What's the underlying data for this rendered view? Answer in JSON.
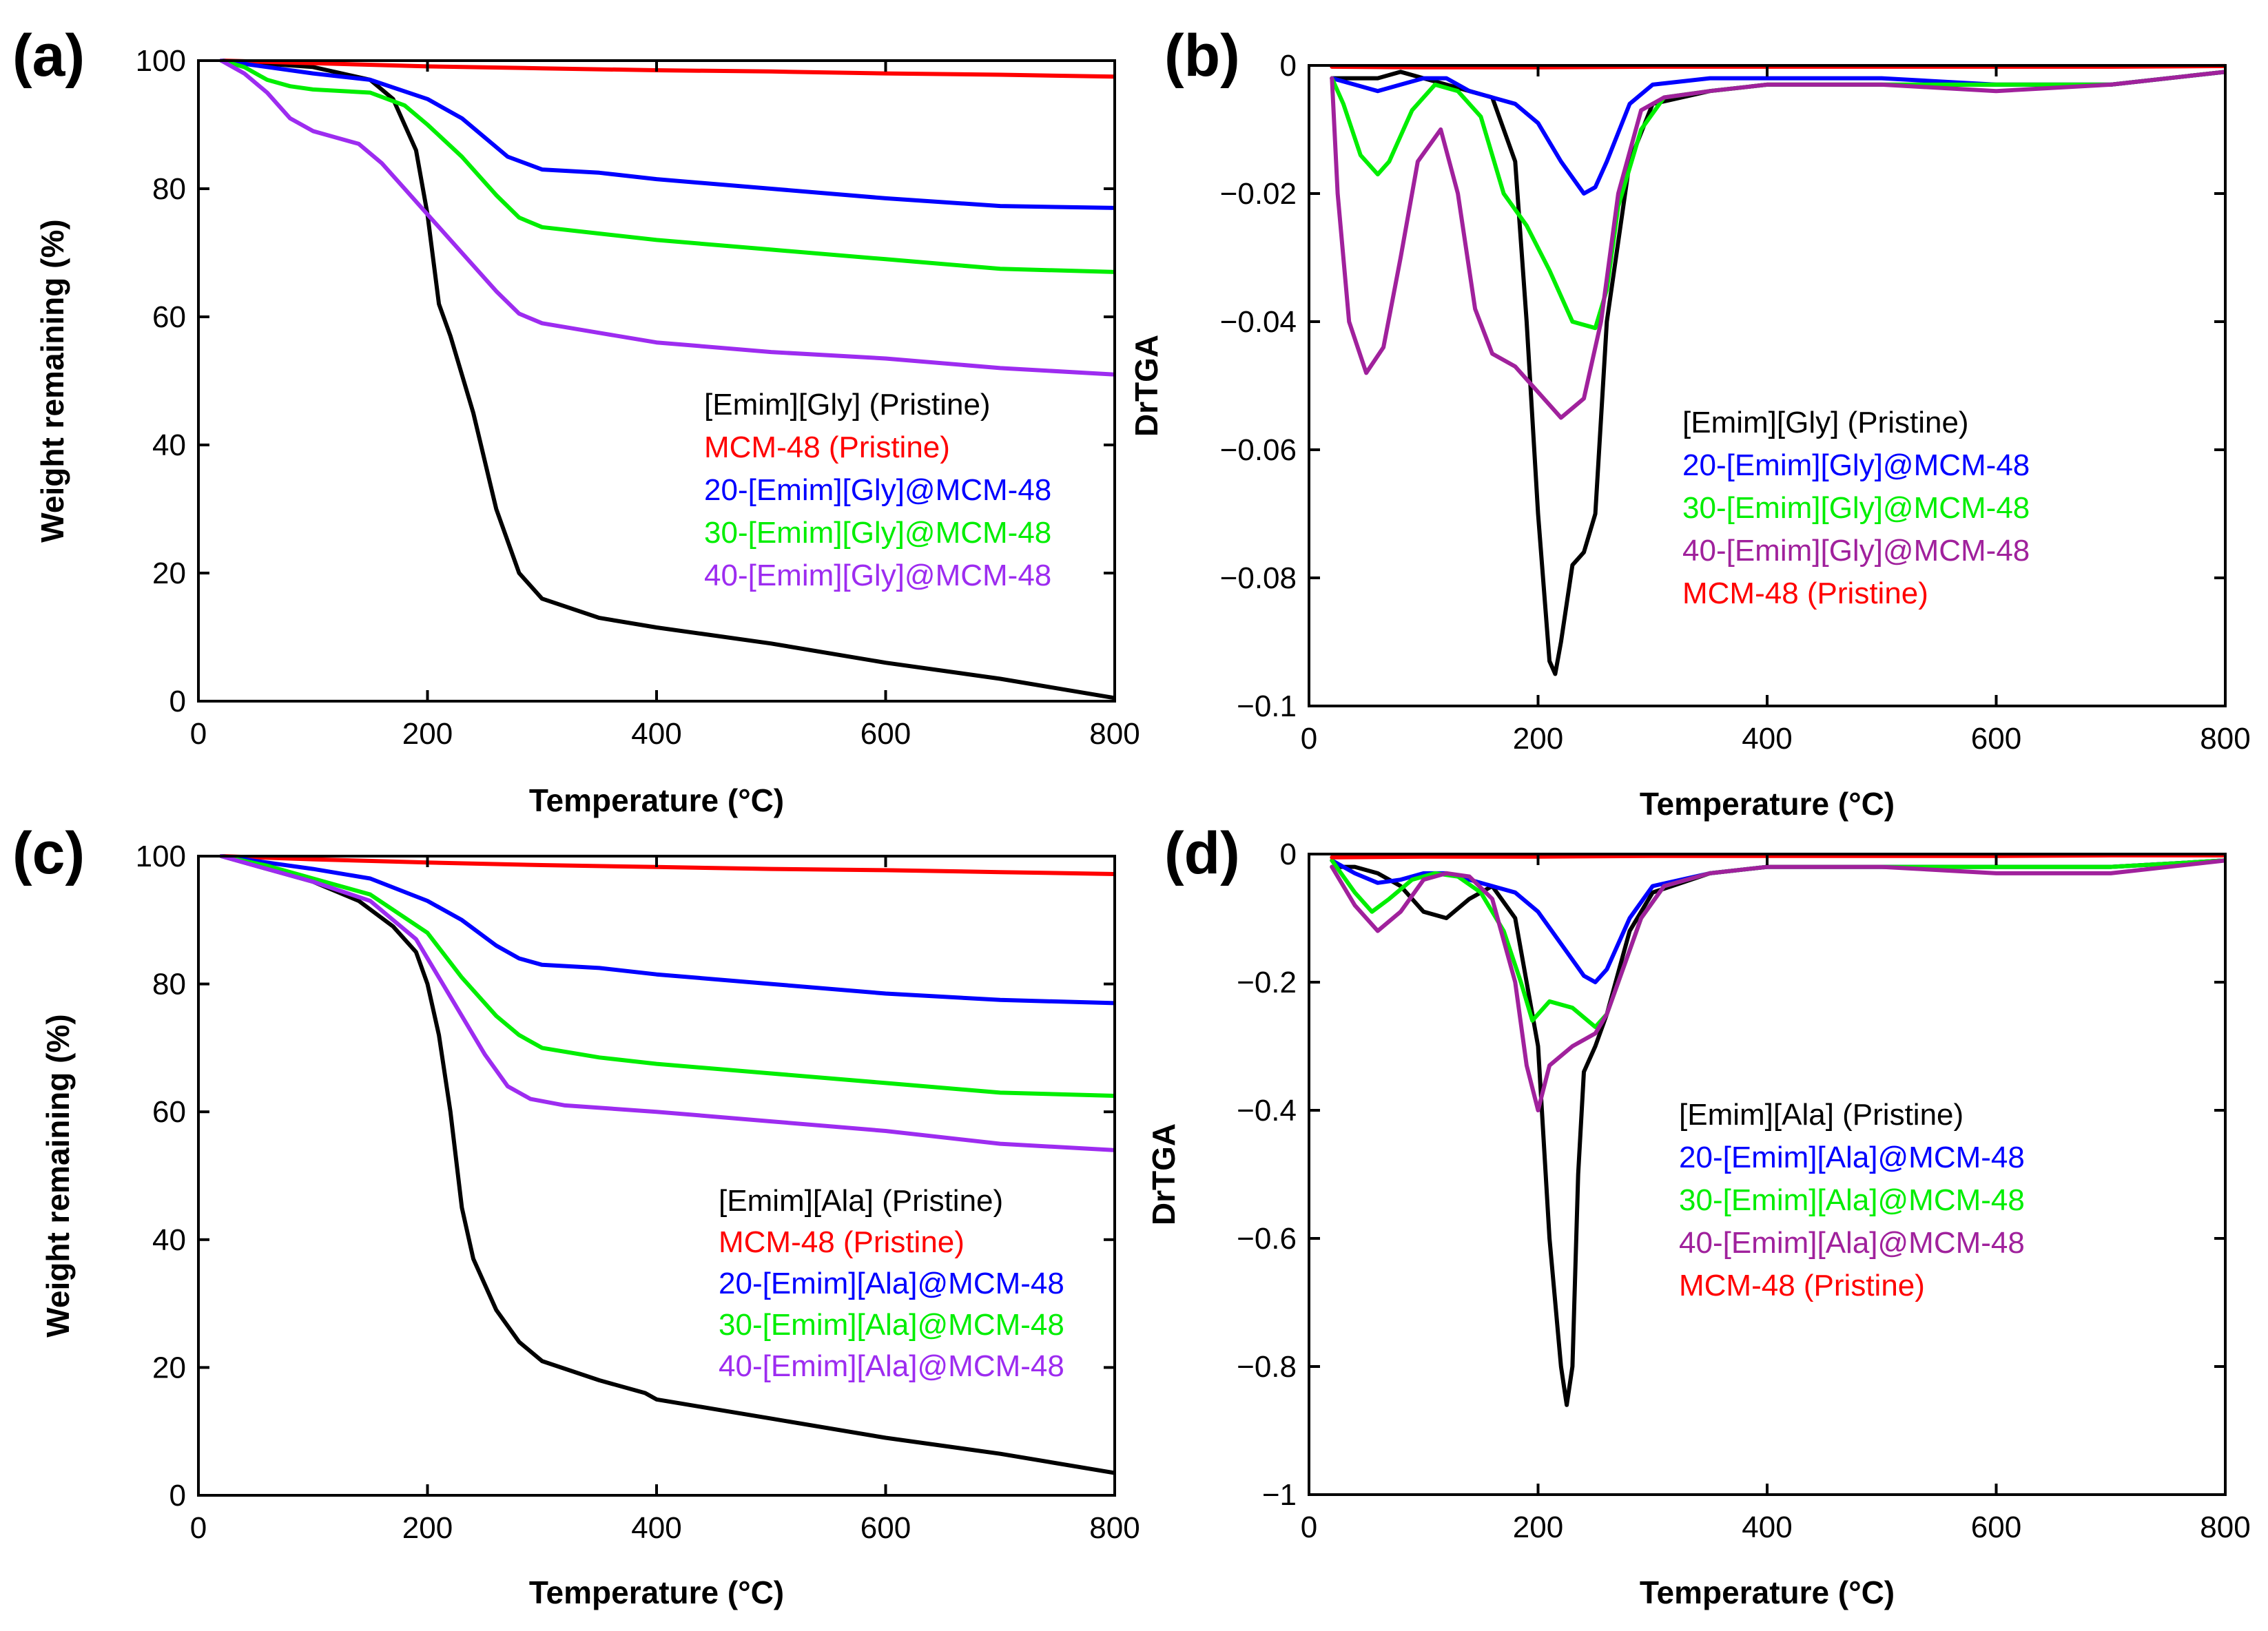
{
  "chart_data": [
    {
      "id": "a",
      "panel_label": "(a)",
      "type": "line",
      "xlabel": "Temperature (°C)",
      "ylabel": "Weight remaining (%)",
      "xlim": [
        0,
        800
      ],
      "ylim": [
        0,
        100
      ],
      "xticks": [
        0,
        200,
        400,
        600,
        800
      ],
      "yticks": [
        0,
        20,
        40,
        60,
        80,
        100
      ],
      "xtick_labels": [
        "0",
        "200",
        "400",
        "600",
        "800"
      ],
      "ytick_labels": [
        "0",
        "20",
        "40",
        "60",
        "80",
        "100"
      ],
      "series": [
        {
          "name": "[Emim][Gly] (Pristine)",
          "color": "#000000",
          "x": [
            20,
            100,
            150,
            170,
            190,
            200,
            210,
            220,
            240,
            260,
            280,
            300,
            350,
            400,
            500,
            600,
            700,
            800
          ],
          "y": [
            100,
            99,
            97,
            94,
            86,
            76,
            62,
            57,
            45,
            30,
            20,
            16,
            13,
            11.5,
            9,
            6,
            3.5,
            0.5
          ]
        },
        {
          "name": "MCM-48 (Pristine)",
          "color": "#ff0000",
          "x": [
            20,
            100,
            200,
            300,
            400,
            500,
            600,
            700,
            800
          ],
          "y": [
            100,
            99.6,
            99.1,
            98.8,
            98.5,
            98.3,
            98,
            97.8,
            97.5
          ]
        },
        {
          "name": "20-[Emim][Gly]@MCM-48",
          "color": "#0000ff",
          "x": [
            20,
            60,
            100,
            150,
            200,
            230,
            250,
            270,
            300,
            350,
            400,
            500,
            600,
            700,
            800
          ],
          "y": [
            100,
            99,
            98,
            97,
            94,
            91,
            88,
            85,
            83,
            82.5,
            81.5,
            80,
            78.5,
            77.3,
            77
          ]
        },
        {
          "name": "30-[Emim][Gly]@MCM-48",
          "color": "#00ee00",
          "x": [
            20,
            40,
            60,
            80,
            100,
            150,
            180,
            200,
            230,
            260,
            280,
            300,
            350,
            400,
            500,
            600,
            700,
            800
          ],
          "y": [
            100,
            99,
            97,
            96,
            95.5,
            95,
            93,
            90,
            85,
            79,
            75.5,
            74,
            73,
            72,
            70.5,
            69,
            67.5,
            67
          ]
        },
        {
          "name": "40-[Emim][Gly]@MCM-48",
          "color": "#9d2cf0",
          "x": [
            20,
            40,
            60,
            80,
            100,
            120,
            140,
            160,
            180,
            200,
            230,
            260,
            280,
            300,
            350,
            400,
            500,
            600,
            700,
            800
          ],
          "y": [
            100,
            98,
            95,
            91,
            89,
            88,
            87,
            84,
            80,
            76,
            70,
            64,
            60.5,
            59,
            57.5,
            56,
            54.5,
            53.5,
            52,
            51
          ]
        }
      ],
      "legend": [
        "[Emim][Gly] (Pristine)",
        "MCM-48 (Pristine)",
        "20-[Emim][Gly]@MCM-48",
        "30-[Emim][Gly]@MCM-48",
        "40-[Emim][Gly]@MCM-48"
      ],
      "legend_placement": "center-right"
    },
    {
      "id": "b",
      "panel_label": "(b)",
      "type": "line",
      "xlabel": "Temperature (°C)",
      "ylabel": "DrTGA",
      "xlim": [
        0,
        800
      ],
      "ylim": [
        -0.1,
        0
      ],
      "xticks": [
        0,
        200,
        400,
        600,
        800
      ],
      "yticks": [
        -0.1,
        -0.08,
        -0.06,
        -0.04,
        -0.02,
        0
      ],
      "xtick_labels": [
        "0",
        "200",
        "400",
        "600",
        "800"
      ],
      "ytick_labels": [
        "−0.1",
        "−0.08",
        "−0.06",
        "−0.04",
        "−0.02",
        "0"
      ],
      "series": [
        {
          "name": "[Emim][Gly] (Pristine)",
          "color": "#000000",
          "x": [
            20,
            40,
            60,
            80,
            100,
            120,
            140,
            160,
            180,
            190,
            200,
            210,
            215,
            220,
            230,
            240,
            250,
            260,
            280,
            300,
            350,
            400,
            500,
            600,
            700,
            800
          ],
          "y": [
            -0.002,
            -0.002,
            -0.002,
            -0.001,
            -0.002,
            -0.003,
            -0.004,
            -0.005,
            -0.015,
            -0.04,
            -0.07,
            -0.093,
            -0.095,
            -0.09,
            -0.078,
            -0.076,
            -0.07,
            -0.04,
            -0.015,
            -0.006,
            -0.004,
            -0.003,
            -0.003,
            -0.003,
            -0.003,
            -0.001
          ]
        },
        {
          "name": "20-[Emim][Gly]@MCM-48",
          "color": "#0000ff",
          "x": [
            20,
            40,
            60,
            80,
            100,
            120,
            140,
            160,
            180,
            200,
            220,
            240,
            250,
            260,
            280,
            300,
            350,
            400,
            500,
            600,
            700,
            800
          ],
          "y": [
            -0.002,
            -0.003,
            -0.004,
            -0.003,
            -0.002,
            -0.002,
            -0.004,
            -0.005,
            -0.006,
            -0.009,
            -0.015,
            -0.02,
            -0.019,
            -0.015,
            -0.006,
            -0.003,
            -0.002,
            -0.002,
            -0.002,
            -0.003,
            -0.003,
            -0.001
          ]
        },
        {
          "name": "30-[Emim][Gly]@MCM-48",
          "color": "#00ee00",
          "x": [
            20,
            30,
            45,
            60,
            70,
            90,
            110,
            130,
            150,
            170,
            190,
            210,
            230,
            250,
            260,
            270,
            290,
            310,
            350,
            400,
            500,
            600,
            700,
            800
          ],
          "y": [
            -0.002,
            -0.006,
            -0.014,
            -0.017,
            -0.015,
            -0.007,
            -0.003,
            -0.004,
            -0.008,
            -0.02,
            -0.025,
            -0.032,
            -0.04,
            -0.041,
            -0.035,
            -0.022,
            -0.01,
            -0.005,
            -0.004,
            -0.003,
            -0.003,
            -0.003,
            -0.003,
            -0.001
          ]
        },
        {
          "name": "40-[Emim][Gly]@MCM-48",
          "color": "#a0219c",
          "x": [
            20,
            25,
            35,
            50,
            65,
            80,
            95,
            115,
            130,
            145,
            160,
            180,
            200,
            220,
            240,
            255,
            270,
            290,
            310,
            350,
            400,
            500,
            600,
            700,
            800
          ],
          "y": [
            -0.002,
            -0.02,
            -0.04,
            -0.048,
            -0.044,
            -0.03,
            -0.015,
            -0.01,
            -0.02,
            -0.038,
            -0.045,
            -0.047,
            -0.051,
            -0.055,
            -0.052,
            -0.04,
            -0.02,
            -0.007,
            -0.005,
            -0.004,
            -0.003,
            -0.003,
            -0.004,
            -0.003,
            -0.001
          ]
        },
        {
          "name": "MCM-48 (Pristine)",
          "color": "#ff0000",
          "x": [
            20,
            100,
            200,
            300,
            400,
            500,
            600,
            700,
            800
          ],
          "y": [
            -0.0002,
            -0.0003,
            -0.0003,
            -0.0002,
            -0.0002,
            -0.0002,
            -0.0002,
            -0.0002,
            -0.0001
          ]
        }
      ],
      "legend": [
        "[Emim][Gly] (Pristine)",
        "20-[Emim][Gly]@MCM-48",
        "30-[Emim][Gly]@MCM-48",
        "40-[Emim][Gly]@MCM-48",
        "MCM-48 (Pristine)"
      ],
      "legend_placement": "center"
    },
    {
      "id": "c",
      "panel_label": "(c)",
      "type": "line",
      "xlabel": "Temperature (°C)",
      "ylabel": "Weight remaining (%)",
      "xlim": [
        0,
        800
      ],
      "ylim": [
        0,
        100
      ],
      "xticks": [
        0,
        200,
        400,
        600,
        800
      ],
      "yticks": [
        0,
        20,
        40,
        60,
        80,
        100
      ],
      "xtick_labels": [
        "0",
        "200",
        "400",
        "600",
        "800"
      ],
      "ytick_labels": [
        "0",
        "20",
        "40",
        "60",
        "80",
        "100"
      ],
      "series": [
        {
          "name": "[Emim][Ala] (Pristine)",
          "color": "#000000",
          "x": [
            20,
            60,
            100,
            140,
            170,
            190,
            200,
            210,
            220,
            230,
            240,
            260,
            280,
            300,
            350,
            390,
            400,
            450,
            500,
            600,
            700,
            800
          ],
          "y": [
            100,
            98,
            96,
            93,
            89,
            85,
            80,
            72,
            60,
            45,
            37,
            29,
            24,
            21,
            18,
            16,
            15,
            13.5,
            12,
            9,
            6.5,
            3.5
          ]
        },
        {
          "name": "MCM-48 (Pristine)",
          "color": "#ff0000",
          "x": [
            20,
            100,
            200,
            300,
            400,
            500,
            600,
            700,
            800
          ],
          "y": [
            100,
            99.5,
            99,
            98.6,
            98.3,
            98,
            97.8,
            97.5,
            97.2
          ]
        },
        {
          "name": "20-[Emim][Ala]@MCM-48",
          "color": "#0000ff",
          "x": [
            20,
            60,
            100,
            150,
            200,
            230,
            260,
            280,
            300,
            350,
            400,
            500,
            600,
            700,
            800
          ],
          "y": [
            100,
            99,
            98,
            96.5,
            93,
            90,
            86,
            84,
            83,
            82.5,
            81.5,
            80,
            78.5,
            77.5,
            77
          ]
        },
        {
          "name": "30-[Emim][Ala]@MCM-48",
          "color": "#00ee00",
          "x": [
            20,
            60,
            100,
            150,
            200,
            230,
            260,
            280,
            300,
            350,
            400,
            500,
            600,
            700,
            800
          ],
          "y": [
            100,
            98.5,
            96.5,
            94,
            88,
            81,
            75,
            72,
            70,
            68.5,
            67.5,
            66,
            64.5,
            63,
            62.5
          ]
        },
        {
          "name": "40-[Emim][Ala]@MCM-48",
          "color": "#9d2cf0",
          "x": [
            20,
            60,
            100,
            150,
            190,
            220,
            250,
            270,
            290,
            320,
            400,
            500,
            600,
            700,
            800
          ],
          "y": [
            100,
            98,
            96,
            93,
            87,
            78,
            69,
            64,
            62,
            61,
            60,
            58.5,
            57,
            55,
            54
          ]
        }
      ],
      "legend": [
        "[Emim][Ala] (Pristine)",
        "MCM-48 (Pristine)",
        "20-[Emim][Ala]@MCM-48",
        "30-[Emim][Ala]@MCM-48",
        "40-[Emim][Ala]@MCM-48"
      ],
      "legend_placement": "bottom-right"
    },
    {
      "id": "d",
      "panel_label": "(d)",
      "type": "line",
      "xlabel": "Temperature (°C)",
      "ylabel": "DrTGA",
      "xlim": [
        0,
        800
      ],
      "ylim": [
        -1,
        0
      ],
      "xticks": [
        0,
        200,
        400,
        600,
        800
      ],
      "yticks": [
        -1,
        -0.8,
        -0.6,
        -0.4,
        -0.2,
        0
      ],
      "xtick_labels": [
        "0",
        "200",
        "400",
        "600",
        "800"
      ],
      "ytick_labels": [
        "−1",
        "−0.8",
        "−0.6",
        "−0.4",
        "−0.2",
        "0"
      ],
      "series": [
        {
          "name": "[Emim][Ala] (Pristine)",
          "color": "#000000",
          "x": [
            20,
            40,
            60,
            80,
            100,
            120,
            140,
            160,
            180,
            200,
            210,
            220,
            225,
            230,
            235,
            240,
            250,
            260,
            280,
            300,
            350,
            400,
            500,
            600,
            700,
            800
          ],
          "y": [
            -0.02,
            -0.02,
            -0.03,
            -0.05,
            -0.09,
            -0.1,
            -0.07,
            -0.05,
            -0.1,
            -0.3,
            -0.6,
            -0.8,
            -0.86,
            -0.8,
            -0.5,
            -0.34,
            -0.3,
            -0.25,
            -0.12,
            -0.06,
            -0.03,
            -0.02,
            -0.02,
            -0.02,
            -0.02,
            -0.01
          ]
        },
        {
          "name": "20-[Emim][Ala]@MCM-48",
          "color": "#0000ff",
          "x": [
            20,
            40,
            60,
            80,
            100,
            120,
            140,
            160,
            180,
            200,
            220,
            240,
            250,
            260,
            280,
            300,
            350,
            400,
            500,
            600,
            700,
            800
          ],
          "y": [
            -0.01,
            -0.03,
            -0.045,
            -0.04,
            -0.03,
            -0.03,
            -0.04,
            -0.05,
            -0.06,
            -0.09,
            -0.14,
            -0.19,
            -0.2,
            -0.18,
            -0.1,
            -0.05,
            -0.03,
            -0.02,
            -0.02,
            -0.02,
            -0.02,
            -0.01
          ]
        },
        {
          "name": "30-[Emim][Ala]@MCM-48",
          "color": "#00ee00",
          "x": [
            20,
            40,
            55,
            70,
            90,
            110,
            130,
            150,
            170,
            185,
            195,
            210,
            230,
            250,
            260,
            270,
            290,
            310,
            350,
            400,
            500,
            600,
            700,
            800
          ],
          "y": [
            -0.01,
            -0.06,
            -0.09,
            -0.07,
            -0.04,
            -0.03,
            -0.035,
            -0.06,
            -0.12,
            -0.2,
            -0.26,
            -0.23,
            -0.24,
            -0.27,
            -0.25,
            -0.2,
            -0.1,
            -0.05,
            -0.03,
            -0.02,
            -0.02,
            -0.02,
            -0.02,
            -0.01
          ]
        },
        {
          "name": "40-[Emim][Ala]@MCM-48",
          "color": "#a0219c",
          "x": [
            20,
            40,
            60,
            80,
            100,
            120,
            140,
            160,
            180,
            190,
            200,
            210,
            230,
            250,
            260,
            270,
            290,
            310,
            350,
            400,
            500,
            600,
            700,
            800
          ],
          "y": [
            -0.02,
            -0.08,
            -0.12,
            -0.09,
            -0.04,
            -0.03,
            -0.035,
            -0.07,
            -0.2,
            -0.33,
            -0.4,
            -0.33,
            -0.3,
            -0.28,
            -0.25,
            -0.2,
            -0.1,
            -0.05,
            -0.03,
            -0.02,
            -0.02,
            -0.03,
            -0.03,
            -0.01
          ]
        },
        {
          "name": "MCM-48 (Pristine)",
          "color": "#ff0000",
          "x": [
            20,
            100,
            200,
            300,
            400,
            500,
            600,
            700,
            800
          ],
          "y": [
            -0.005,
            -0.004,
            -0.004,
            -0.003,
            -0.003,
            -0.003,
            -0.003,
            -0.002,
            -0.002
          ]
        }
      ],
      "legend": [
        "[Emim][Ala] (Pristine)",
        "20-[Emim][Ala]@MCM-48",
        "30-[Emim][Ala]@MCM-48",
        "40-[Emim][Ala]@MCM-48",
        "MCM-48 (Pristine)"
      ],
      "legend_placement": "center"
    }
  ]
}
